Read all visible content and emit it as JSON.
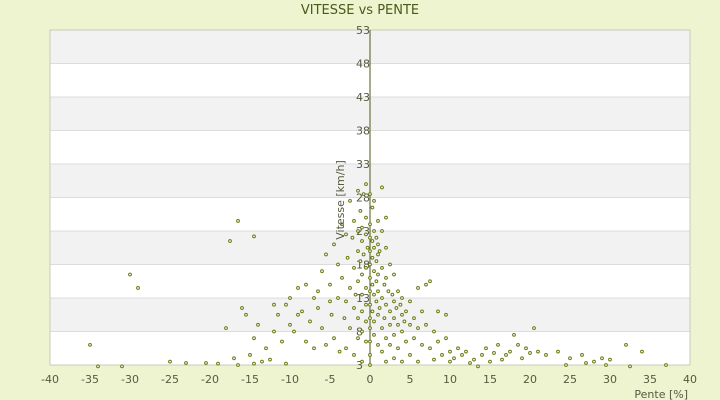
{
  "chart_data": {
    "type": "scatter",
    "title": "VITESSE vs PENTE",
    "xlabel": "Pente [%]",
    "ylabel": "Vitesse [km/h]",
    "xlim": [
      -40,
      40
    ],
    "ylim": [
      3,
      53
    ],
    "xticks": [
      -40,
      -35,
      -30,
      -25,
      -20,
      -15,
      -10,
      -5,
      0,
      5,
      10,
      15,
      20,
      25,
      30,
      35,
      40
    ],
    "yticks": [
      3,
      8,
      13,
      18,
      23,
      28,
      33,
      38,
      43,
      48,
      53
    ],
    "grid": "horizontal alternating bands",
    "colors": {
      "background": "#eef3d0",
      "plot_band_light": "#ffffff",
      "plot_band_dark": "#f2f2f2",
      "axis": "#4a5a1a",
      "point": "#6b7a10"
    },
    "series": [
      {
        "points": [
          [
            -35,
            6.0
          ],
          [
            -34,
            2.8
          ],
          [
            -31,
            2.8
          ],
          [
            -30,
            16.5
          ],
          [
            -29,
            14.5
          ],
          [
            -25,
            3.5
          ],
          [
            -23,
            3.3
          ],
          [
            -20.5,
            3.3
          ],
          [
            -19,
            3.2
          ],
          [
            -18,
            8.5
          ],
          [
            -17.5,
            21.5
          ],
          [
            -16.5,
            24.5
          ],
          [
            -17,
            4.0
          ],
          [
            -16.5,
            3.0
          ],
          [
            -16,
            11.5
          ],
          [
            -15.5,
            10.5
          ],
          [
            -15,
            4.5
          ],
          [
            -14.5,
            3.2
          ],
          [
            -14.5,
            22.2
          ],
          [
            -14.5,
            7.0
          ],
          [
            -14,
            9.0
          ],
          [
            -13.5,
            3.5
          ],
          [
            -13,
            5.5
          ],
          [
            -12.5,
            3.8
          ],
          [
            -12,
            8.0
          ],
          [
            -12,
            12.0
          ],
          [
            -11.5,
            10.5
          ],
          [
            -11,
            6.5
          ],
          [
            -10.5,
            3.2
          ],
          [
            -10.5,
            12.0
          ],
          [
            -10,
            9.0
          ],
          [
            -10,
            13.0
          ],
          [
            -9.5,
            8.0
          ],
          [
            -9,
            10.5
          ],
          [
            -9,
            14.5
          ],
          [
            -8.5,
            11.0
          ],
          [
            -8,
            6.5
          ],
          [
            -8,
            15.0
          ],
          [
            -7.5,
            9.5
          ],
          [
            -7,
            13.0
          ],
          [
            -7,
            5.5
          ],
          [
            -6.5,
            11.5
          ],
          [
            -6.5,
            14.0
          ],
          [
            -6,
            17.0
          ],
          [
            -6,
            8.5
          ],
          [
            -5.5,
            19.5
          ],
          [
            -5.5,
            6.0
          ],
          [
            -5,
            12.5
          ],
          [
            -5,
            15.0
          ],
          [
            -4.8,
            10.5
          ],
          [
            -4.5,
            21.0
          ],
          [
            -4.5,
            7.0
          ],
          [
            -4,
            18.0
          ],
          [
            -4,
            13.0
          ],
          [
            -3.8,
            5.0
          ],
          [
            -3.5,
            24.0
          ],
          [
            -3.5,
            16.0
          ],
          [
            -3.2,
            10.0
          ],
          [
            -3,
            22.5
          ],
          [
            -3,
            12.5
          ],
          [
            -3,
            5.5
          ],
          [
            -2.8,
            19.0
          ],
          [
            -2.5,
            27.5
          ],
          [
            -2.5,
            14.5
          ],
          [
            -2.5,
            8.5
          ],
          [
            -2.2,
            22.0
          ],
          [
            -2,
            24.5
          ],
          [
            -2,
            17.5
          ],
          [
            -2,
            11.5
          ],
          [
            -2,
            4.5
          ],
          [
            -1.8,
            13.5
          ],
          [
            -1.5,
            29.0
          ],
          [
            -1.5,
            23.0
          ],
          [
            -1.5,
            20.0
          ],
          [
            -1.5,
            15.5
          ],
          [
            -1.5,
            10.0
          ],
          [
            -1.5,
            7.0
          ],
          [
            -1.2,
            26.0
          ],
          [
            -1.2,
            18.5
          ],
          [
            -1,
            23.5
          ],
          [
            -1,
            21.5
          ],
          [
            -1,
            16.5
          ],
          [
            -1,
            13.5
          ],
          [
            -1,
            11.0
          ],
          [
            -1,
            8.0
          ],
          [
            -1,
            3.5
          ],
          [
            -0.8,
            28.5
          ],
          [
            -0.8,
            19.5
          ],
          [
            -0.5,
            30.0
          ],
          [
            -0.5,
            25.0
          ],
          [
            -0.5,
            22.5
          ],
          [
            -0.5,
            17.5
          ],
          [
            -0.5,
            14.5
          ],
          [
            -0.5,
            12.0
          ],
          [
            -0.5,
            9.5
          ],
          [
            -0.5,
            6.5
          ],
          [
            -0.3,
            20.5
          ],
          [
            0,
            28.5
          ],
          [
            0,
            24.0
          ],
          [
            0,
            22.0
          ],
          [
            0,
            20.0
          ],
          [
            0,
            18.0
          ],
          [
            0,
            16.0
          ],
          [
            0,
            14.0
          ],
          [
            0,
            12.0
          ],
          [
            0,
            10.0
          ],
          [
            0,
            8.5
          ],
          [
            0,
            6.5
          ],
          [
            0,
            4.5
          ],
          [
            0,
            3.0
          ],
          [
            0.3,
            26.5
          ],
          [
            0.3,
            21.5
          ],
          [
            0.3,
            19.0
          ],
          [
            0.3,
            15.0
          ],
          [
            0.3,
            11.0
          ],
          [
            0.5,
            27.5
          ],
          [
            0.5,
            23.0
          ],
          [
            0.5,
            20.5
          ],
          [
            0.5,
            17.0
          ],
          [
            0.5,
            13.5
          ],
          [
            0.5,
            9.5
          ],
          [
            0.5,
            7.5
          ],
          [
            0.8,
            22.0
          ],
          [
            0.8,
            18.5
          ],
          [
            0.8,
            15.5
          ],
          [
            0.8,
            12.5
          ],
          [
            1,
            24.5
          ],
          [
            1,
            21.0
          ],
          [
            1,
            19.5
          ],
          [
            1,
            16.5
          ],
          [
            1,
            14.0
          ],
          [
            1,
            10.5
          ],
          [
            1,
            6.0
          ],
          [
            1.2,
            20.0
          ],
          [
            1.2,
            11.5
          ],
          [
            1.5,
            29.5
          ],
          [
            1.5,
            23.0
          ],
          [
            1.5,
            17.5
          ],
          [
            1.5,
            13.0
          ],
          [
            1.5,
            8.5
          ],
          [
            1.5,
            5.0
          ],
          [
            1.8,
            15.0
          ],
          [
            1.8,
            10.0
          ],
          [
            2,
            25.0
          ],
          [
            2,
            20.5
          ],
          [
            2,
            16.0
          ],
          [
            2,
            12.0
          ],
          [
            2,
            7.0
          ],
          [
            2,
            3.5
          ],
          [
            2.3,
            14.0
          ],
          [
            2.5,
            18.0
          ],
          [
            2.5,
            11.0
          ],
          [
            2.5,
            9.0
          ],
          [
            2.5,
            6.0
          ],
          [
            2.8,
            13.5
          ],
          [
            3,
            16.5
          ],
          [
            3,
            12.5
          ],
          [
            3,
            10.0
          ],
          [
            3,
            7.5
          ],
          [
            3,
            4.0
          ],
          [
            3.3,
            11.5
          ],
          [
            3.5,
            14.0
          ],
          [
            3.5,
            9.0
          ],
          [
            3.5,
            5.5
          ],
          [
            3.8,
            12.0
          ],
          [
            4,
            13.0
          ],
          [
            4,
            10.5
          ],
          [
            4,
            8.0
          ],
          [
            4,
            3.5
          ],
          [
            4.3,
            9.5
          ],
          [
            4.5,
            11.0
          ],
          [
            4.5,
            6.5
          ],
          [
            5,
            12.5
          ],
          [
            5,
            9.0
          ],
          [
            5,
            4.5
          ],
          [
            5.5,
            10.0
          ],
          [
            5.5,
            7.0
          ],
          [
            6,
            14.5
          ],
          [
            6,
            8.5
          ],
          [
            6,
            3.5
          ],
          [
            6.5,
            11.0
          ],
          [
            6.5,
            6.0
          ],
          [
            7,
            15.0
          ],
          [
            7,
            9.0
          ],
          [
            7.5,
            15.5
          ],
          [
            7.5,
            5.5
          ],
          [
            8,
            8.0
          ],
          [
            8,
            3.8
          ],
          [
            8.5,
            11.0
          ],
          [
            8.5,
            6.5
          ],
          [
            9,
            4.5
          ],
          [
            9.5,
            10.5
          ],
          [
            9.5,
            7.0
          ],
          [
            10,
            3.5
          ],
          [
            10,
            5.0
          ],
          [
            10.5,
            4.0
          ],
          [
            11,
            5.5
          ],
          [
            11.5,
            4.5
          ],
          [
            12,
            5.0
          ],
          [
            12.5,
            3.3
          ],
          [
            13,
            3.8
          ],
          [
            13.5,
            2.8
          ],
          [
            14,
            4.5
          ],
          [
            14.5,
            5.5
          ],
          [
            15,
            3.5
          ],
          [
            15.5,
            4.8
          ],
          [
            16,
            6.0
          ],
          [
            16.5,
            3.8
          ],
          [
            17,
            4.5
          ],
          [
            17.5,
            5.0
          ],
          [
            18,
            7.5
          ],
          [
            18.5,
            6.0
          ],
          [
            19,
            4.0
          ],
          [
            19.5,
            5.5
          ],
          [
            20,
            4.8
          ],
          [
            20.5,
            8.5
          ],
          [
            21,
            5.0
          ],
          [
            22,
            4.5
          ],
          [
            23.5,
            5.0
          ],
          [
            24.5,
            3.0
          ],
          [
            25,
            4.0
          ],
          [
            26.5,
            4.5
          ],
          [
            27,
            3.3
          ],
          [
            28,
            3.5
          ],
          [
            29,
            4.0
          ],
          [
            29.5,
            3.0
          ],
          [
            30,
            3.8
          ],
          [
            32,
            6.0
          ],
          [
            32.5,
            2.8
          ],
          [
            34,
            5.0
          ],
          [
            37,
            3.0
          ]
        ]
      }
    ]
  }
}
